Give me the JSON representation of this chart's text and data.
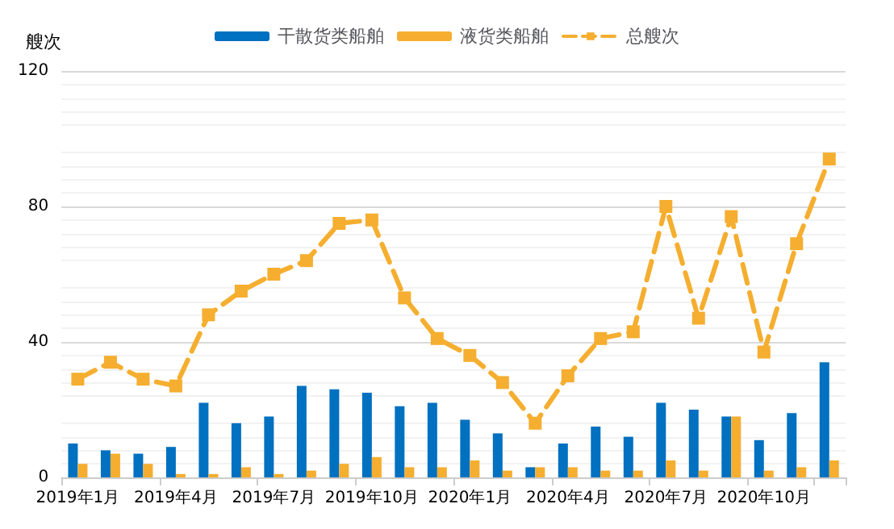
{
  "chart_data": {
    "type": "bar",
    "ylabel": "艘次",
    "categories": [
      "2019年1月",
      null,
      null,
      "2019年4月",
      null,
      null,
      "2019年7月",
      null,
      null,
      "2019年10月",
      null,
      null,
      "2020年1月",
      null,
      null,
      "2020年4月",
      null,
      null,
      "2020年7月",
      null,
      null,
      "2020年10月",
      null,
      null
    ],
    "series": [
      {
        "name": "干散货类船舶",
        "color": "#0070c0",
        "values": [
          10,
          8,
          7,
          9,
          22,
          16,
          18,
          27,
          26,
          25,
          21,
          22,
          17,
          13,
          3,
          10,
          15,
          12,
          22,
          20,
          18,
          11,
          19,
          34
        ]
      },
      {
        "name": "液货类船舶",
        "color": "#f5ae2f",
        "values": [
          4,
          7,
          4,
          1,
          1,
          3,
          1,
          2,
          4,
          6,
          3,
          3,
          5,
          2,
          3,
          3,
          2,
          2,
          5,
          2,
          18,
          2,
          3,
          5
        ]
      },
      {
        "name": "总艘次",
        "type": "line",
        "color": "#f5ae2f",
        "marker": "square",
        "line_style": "dashed",
        "values": [
          29,
          34,
          29,
          27,
          48,
          55,
          60,
          64,
          75,
          76,
          53,
          41,
          36,
          28,
          16,
          30,
          41,
          43,
          80,
          47,
          77,
          37,
          69,
          94
        ]
      }
    ],
    "ylim": [
      0,
      120
    ],
    "yticks": [
      0,
      40,
      80,
      120
    ],
    "grid": "y",
    "legend": "top"
  }
}
